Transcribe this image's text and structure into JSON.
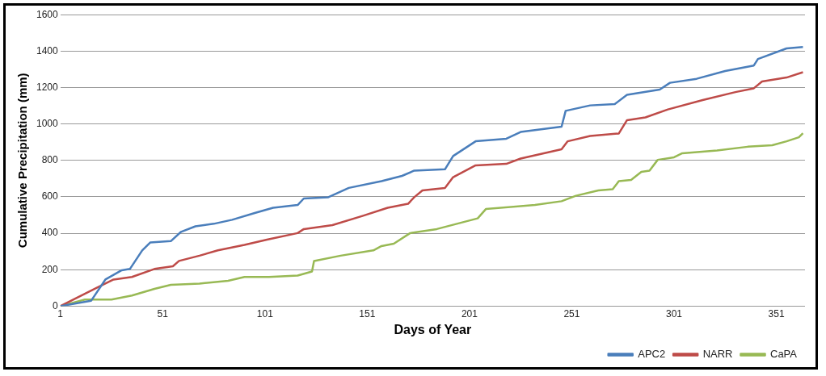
{
  "chart_data": {
    "type": "line",
    "xlabel": "Days of Year",
    "ylabel": "Cumulative Precipitation (mm)",
    "xlim": [
      1,
      365
    ],
    "xticks": [
      1,
      51,
      101,
      151,
      201,
      251,
      301,
      351
    ],
    "ylim": [
      0,
      1600
    ],
    "yticks": [
      0,
      200,
      400,
      600,
      800,
      1000,
      1200,
      1400,
      1600
    ],
    "grid": "y",
    "legend": "bottom right",
    "marker": "none",
    "line_style": "solid",
    "series": [
      {
        "name": "APC2",
        "color": "#4a7ebb",
        "x": [
          1,
          16,
          23,
          31,
          35,
          41,
          45,
          55,
          60,
          67,
          76,
          85,
          96,
          105,
          117,
          120,
          132,
          142,
          158,
          168,
          174,
          189,
          193,
          204,
          219,
          226,
          246,
          248,
          260,
          272,
          278,
          294,
          299,
          312,
          326,
          340,
          342,
          356,
          364
        ],
        "values": [
          0,
          29,
          146,
          197,
          204,
          306,
          350,
          357,
          408,
          438,
          452,
          474,
          511,
          540,
          555,
          591,
          598,
          649,
          686,
          715,
          744,
          751,
          824,
          905,
          919,
          956,
          985,
          1072,
          1102,
          1109,
          1160,
          1189,
          1226,
          1248,
          1291,
          1321,
          1357,
          1415,
          1423
        ]
      },
      {
        "name": "NARR",
        "color": "#be4b48",
        "x": [
          1,
          19,
          27,
          36,
          47,
          56,
          59,
          69,
          78,
          91,
          102,
          117,
          120,
          134,
          149,
          161,
          171,
          174,
          178,
          189,
          193,
          204,
          219,
          226,
          246,
          249,
          260,
          274,
          278,
          287,
          298,
          315,
          331,
          340,
          344,
          356,
          364
        ],
        "values": [
          0,
          102,
          146,
          160,
          204,
          219,
          248,
          277,
          306,
          336,
          365,
          401,
          423,
          445,
          496,
          540,
          562,
          598,
          635,
          649,
          708,
          773,
          781,
          810,
          861,
          905,
          934,
          948,
          1021,
          1036,
          1080,
          1131,
          1175,
          1196,
          1233,
          1255,
          1284
        ]
      },
      {
        "name": "CaPA",
        "color": "#98b954",
        "x": [
          1,
          13,
          26,
          36,
          47,
          55,
          69,
          83,
          91,
          103,
          117,
          124,
          125,
          138,
          154,
          158,
          164,
          172,
          185,
          205,
          209,
          233,
          246,
          253,
          264,
          271,
          274,
          280,
          285,
          289,
          293,
          301,
          305,
          322,
          337,
          349,
          356,
          362,
          364
        ],
        "values": [
          0,
          36,
          36,
          58,
          95,
          117,
          124,
          139,
          160,
          160,
          168,
          190,
          248,
          277,
          306,
          330,
          343,
          401,
          423,
          482,
          533,
          555,
          576,
          606,
          635,
          642,
          686,
          693,
          737,
          744,
          803,
          817,
          839,
          854,
          875,
          883,
          905,
          927,
          949
        ]
      }
    ]
  }
}
